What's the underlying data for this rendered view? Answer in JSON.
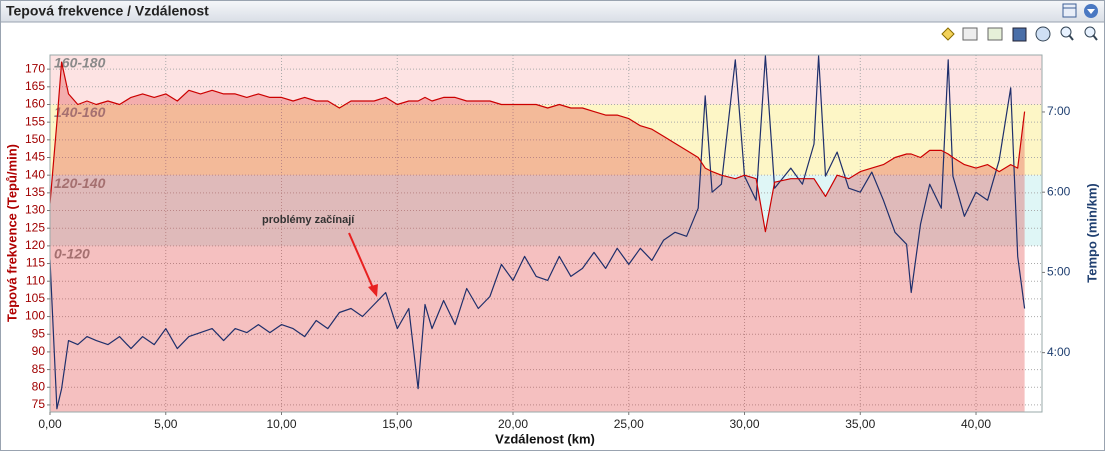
{
  "title": "Tepová frekvence / Vzdálenost",
  "chart_data": {
    "type": "line",
    "xlabel": "Vzdálenost (km)",
    "ylabel": "Tepová frekvence (Tepů/min)",
    "y2label": "Tempo (min/km)",
    "annotation": "problémy začínají",
    "xlim": [
      0,
      42.85
    ],
    "ylim": [
      73,
      174
    ],
    "y2lim": [
      3.26,
      7.71
    ],
    "grid": true,
    "xticks": [
      {
        "value": 0,
        "label": "0,00"
      },
      {
        "value": 5,
        "label": "5,00"
      },
      {
        "value": 10,
        "label": "10,00"
      },
      {
        "value": 15,
        "label": "15,00"
      },
      {
        "value": 20,
        "label": "20,00"
      },
      {
        "value": 25,
        "label": "25,00"
      },
      {
        "value": 30,
        "label": "30,00"
      },
      {
        "value": 35,
        "label": "35,00"
      },
      {
        "value": 40,
        "label": "40,00"
      }
    ],
    "yticks": [
      75,
      80,
      85,
      90,
      95,
      100,
      105,
      110,
      115,
      120,
      125,
      130,
      135,
      140,
      145,
      150,
      155,
      160,
      165,
      170
    ],
    "y2ticks": [
      {
        "value": 4,
        "label": "4:00"
      },
      {
        "value": 5,
        "label": "5:00"
      },
      {
        "value": 6,
        "label": "6:00"
      },
      {
        "value": 7,
        "label": "7:00"
      }
    ],
    "zones": [
      {
        "label": "160-180",
        "from": 160,
        "to": 180,
        "color": "#fde3e3"
      },
      {
        "label": "140-160",
        "from": 140,
        "to": 160,
        "color": "#fdf6c6"
      },
      {
        "label": "120-140",
        "from": 120,
        "to": 140,
        "color": "#dff6f6"
      },
      {
        "label": "0-120",
        "from": 0,
        "to": 120,
        "color": "#ffffff"
      }
    ],
    "x": [
      0,
      0.3,
      0.5,
      0.8,
      1.2,
      1.6,
      2,
      2.5,
      3,
      3.5,
      4,
      4.5,
      5,
      5.5,
      6,
      6.5,
      7,
      7.5,
      8,
      8.5,
      9,
      9.5,
      10,
      10.5,
      11,
      11.5,
      12,
      12.5,
      13,
      13.5,
      14,
      14.5,
      15,
      15.5,
      15.9,
      16.2,
      16.5,
      17,
      17.5,
      18,
      18.5,
      19,
      19.5,
      20,
      20.5,
      21,
      21.5,
      22,
      22.5,
      23,
      23.5,
      24,
      24.5,
      25,
      25.5,
      26,
      26.5,
      27,
      27.5,
      28,
      28.3,
      28.6,
      29,
      29.6,
      30,
      30.5,
      30.9,
      31.3,
      32,
      32.5,
      33,
      33.2,
      33.5,
      34,
      34.5,
      35,
      35.5,
      36,
      36.5,
      37,
      37.2,
      37.6,
      38,
      38.5,
      38.8,
      39,
      39.5,
      40,
      40.5,
      41,
      41.5,
      41.8,
      42.1
    ],
    "series": [
      {
        "name": "Tepová frekvence",
        "color": "#cc0000",
        "fill": "rgba(225,60,60,0.32)",
        "values": [
          132,
          155,
          172,
          163,
          160,
          161,
          160,
          161,
          160,
          162,
          163,
          162,
          163,
          161,
          164,
          163,
          164,
          163,
          163,
          162,
          163,
          162,
          162,
          161,
          162,
          161,
          161,
          159,
          161,
          161,
          161,
          162,
          160,
          161,
          161,
          162,
          161,
          162,
          162,
          161,
          161,
          161,
          160,
          160,
          160,
          160,
          159,
          160,
          159,
          159,
          158,
          157,
          157,
          156,
          154,
          153,
          151,
          149,
          147,
          145,
          142,
          141,
          140,
          139,
          140,
          139,
          124,
          138,
          139,
          139,
          139,
          137,
          134,
          140,
          139,
          141,
          142,
          143,
          145,
          146,
          146,
          145,
          147,
          147,
          146,
          145,
          143,
          142,
          143,
          141,
          143,
          142,
          158
        ]
      },
      {
        "name": "Tempo",
        "color": "#1f2f6b",
        "axis": "y2",
        "values": [
          5.16,
          3.3,
          3.55,
          4.15,
          4.1,
          4.2,
          4.15,
          4.1,
          4.2,
          4.05,
          4.2,
          4.1,
          4.3,
          4.05,
          4.2,
          4.25,
          4.3,
          4.15,
          4.3,
          4.25,
          4.35,
          4.25,
          4.35,
          4.3,
          4.2,
          4.4,
          4.3,
          4.5,
          4.55,
          4.45,
          4.6,
          4.75,
          4.3,
          4.55,
          3.55,
          4.6,
          4.3,
          4.65,
          4.35,
          4.8,
          4.55,
          4.7,
          5.1,
          4.9,
          5.2,
          4.95,
          4.9,
          5.2,
          4.95,
          5.05,
          5.25,
          5.05,
          5.3,
          5.1,
          5.3,
          5.15,
          5.4,
          5.5,
          5.45,
          5.8,
          7.2,
          6.0,
          6.1,
          7.65,
          6.2,
          5.9,
          7.7,
          6.05,
          6.3,
          6.1,
          6.6,
          7.7,
          6.2,
          6.5,
          6.05,
          6.0,
          6.25,
          5.9,
          5.5,
          5.35,
          4.75,
          5.6,
          6.1,
          5.8,
          7.65,
          6.2,
          5.7,
          6.0,
          5.9,
          6.4,
          7.3,
          5.2,
          4.55
        ]
      }
    ]
  }
}
